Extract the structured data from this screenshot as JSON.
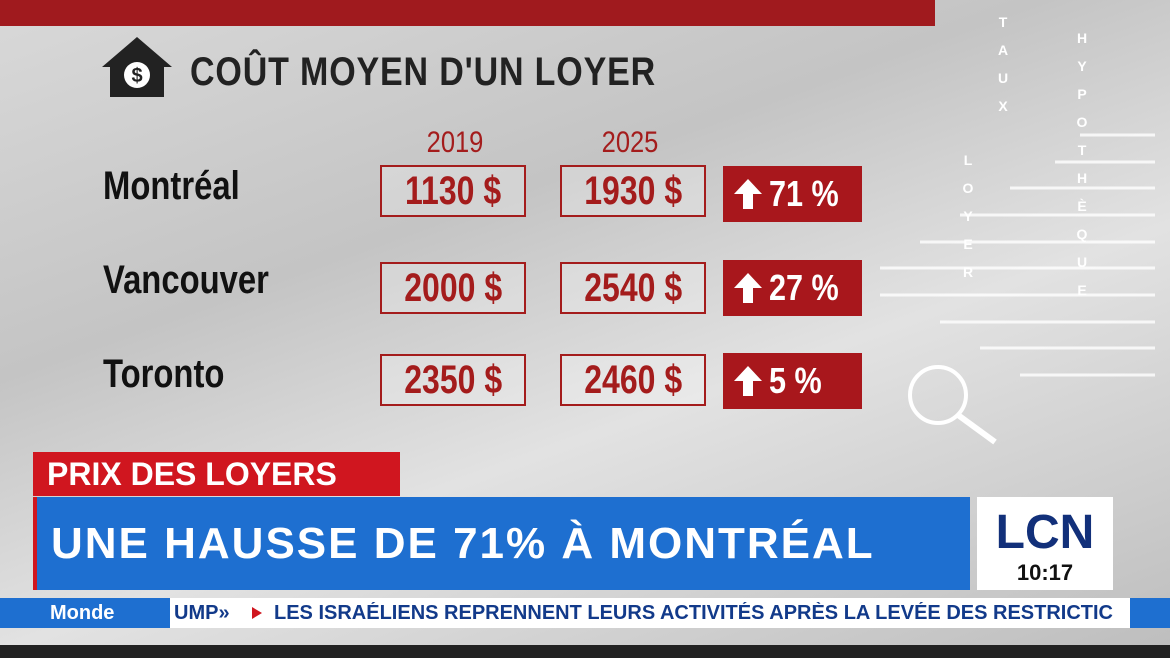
{
  "header": {
    "title": "COÛT MOYEN D'UN LOYER"
  },
  "table": {
    "columns": [
      "2019",
      "2025"
    ],
    "rows": [
      [
        "Montréal",
        "1130 $",
        "1930 $",
        "71 %"
      ],
      [
        "Vancouver",
        "2000 $",
        "2540 $",
        "27 %"
      ],
      [
        "Toronto",
        "2350 $",
        "2460 $",
        "5 %"
      ]
    ]
  },
  "decor": {
    "words": [
      "TAUX",
      "LOYER",
      "HYPOTHÈQUE"
    ]
  },
  "lower_third": {
    "tag": "PRIX DES LOYERS",
    "headline": "UNE HAUSSE DE 71% À MONTRÉAL",
    "logo": "LCN",
    "time": "10:17"
  },
  "ticker": {
    "section": "Monde",
    "previous": "UMP»",
    "text": "LES ISRAÉLIENS REPRENNENT LEURS ACTIVITÉS APRÈS LA LEVÉE DES RESTRICTIC"
  }
}
